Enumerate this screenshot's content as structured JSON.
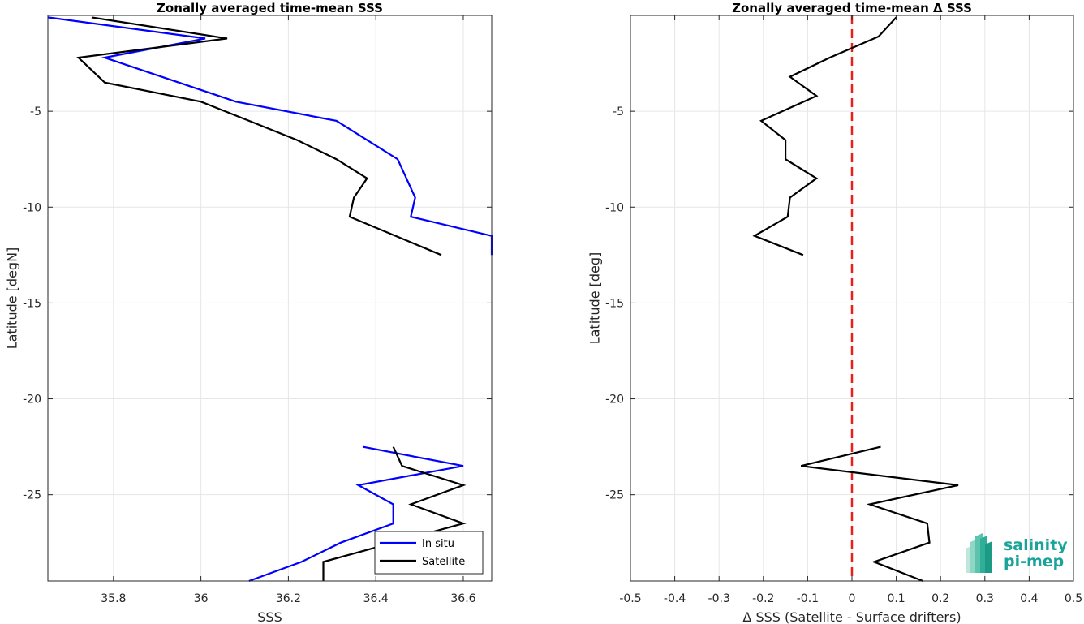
{
  "chart_data": [
    {
      "type": "line",
      "title": "Zonally averaged time-mean SSS",
      "xlabel": "SSS",
      "ylabel": "Latitude [degN]",
      "xlim": [
        35.65,
        36.665
      ],
      "ylim": [
        -29.5,
        0
      ],
      "xticks": [
        35.8,
        36.0,
        36.2,
        36.4,
        36.6
      ],
      "xtick_labels": [
        "35.8",
        "36",
        "36.2",
        "36.4",
        "36.6"
      ],
      "yticks": [
        -5,
        -10,
        -15,
        -20,
        -25
      ],
      "ytick_labels": [
        "-5",
        "-10",
        "-15",
        "-20",
        "-25"
      ],
      "grid": true,
      "legend": {
        "placement": "bottom-right",
        "entries": [
          "In situ",
          "Satellite"
        ]
      },
      "series": [
        {
          "name": "In situ",
          "color": "#0000ff",
          "segments": [
            {
              "x": [
                35.65,
                36.01,
                35.78,
                36.08,
                36.31,
                36.38,
                36.45,
                36.47,
                36.49,
                36.48,
                36.665,
                36.665
              ],
              "y": [
                -0.1,
                -1.2,
                -2.2,
                -4.5,
                -5.5,
                -6.5,
                -7.5,
                -8.5,
                -9.5,
                -10.5,
                -11.5,
                -12.5
              ]
            },
            {
              "x": [
                36.37,
                36.6,
                36.36,
                36.44,
                36.44,
                36.32,
                36.23,
                36.11
              ],
              "y": [
                -22.5,
                -23.5,
                -24.5,
                -25.5,
                -26.5,
                -27.5,
                -28.5,
                -29.5
              ]
            }
          ]
        },
        {
          "name": "Satellite",
          "color": "#000000",
          "segments": [
            {
              "x": [
                35.75,
                36.06,
                35.72,
                35.78,
                36.0,
                36.11,
                36.22,
                36.31,
                36.38,
                36.35,
                36.34,
                36.55
              ],
              "y": [
                -0.1,
                -1.2,
                -2.2,
                -3.5,
                -4.5,
                -5.5,
                -6.5,
                -7.5,
                -8.5,
                -9.5,
                -10.5,
                -12.5
              ]
            },
            {
              "x": [
                36.44,
                36.46,
                36.6,
                36.48,
                36.6,
                36.28,
                36.28
              ],
              "y": [
                -22.5,
                -23.5,
                -24.5,
                -25.5,
                -26.5,
                -28.5,
                -29.5
              ]
            }
          ]
        }
      ]
    },
    {
      "type": "line",
      "title": "Zonally averaged time-mean Δ SSS",
      "xlabel": "Δ SSS (Satellite - Surface drifters)",
      "ylabel": "Latitude [deg]",
      "xlim": [
        -0.5,
        0.5
      ],
      "ylim": [
        -29.5,
        0
      ],
      "xticks": [
        -0.5,
        -0.4,
        -0.3,
        -0.2,
        -0.1,
        0,
        0.1,
        0.2,
        0.3,
        0.4,
        0.5
      ],
      "xtick_labels": [
        "-0.5",
        "-0.4",
        "-0.3",
        "-0.2",
        "-0.1",
        "0",
        "0.1",
        "0.2",
        "0.3",
        "0.4",
        "0.5"
      ],
      "yticks": [
        -5,
        -10,
        -15,
        -20,
        -25
      ],
      "ytick_labels": [
        "-5",
        "-10",
        "-15",
        "-20",
        "-25"
      ],
      "grid": true,
      "reference_line": {
        "x": 0,
        "color": "#e8201a",
        "style": "dashed"
      },
      "series": [
        {
          "color": "#000000",
          "segments": [
            {
              "x": [
                0.1,
                0.06,
                -0.05,
                -0.14,
                -0.08,
                -0.205,
                -0.15,
                -0.15,
                -0.08,
                -0.14,
                -0.145,
                -0.22,
                -0.11
              ],
              "y": [
                -0.1,
                -1.1,
                -2.2,
                -3.2,
                -4.2,
                -5.5,
                -6.5,
                -7.5,
                -8.5,
                -9.5,
                -10.5,
                -11.5,
                -12.5
              ]
            },
            {
              "x": [
                0.065,
                -0.115,
                0.24,
                0.04,
                0.17,
                0.175,
                0.05,
                0.16
              ],
              "y": [
                -22.5,
                -23.5,
                -24.5,
                -25.5,
                -26.5,
                -27.5,
                -28.5,
                -29.5
              ]
            }
          ]
        }
      ]
    }
  ],
  "logo": {
    "line1": "salinity",
    "line2": "pi-mep"
  }
}
